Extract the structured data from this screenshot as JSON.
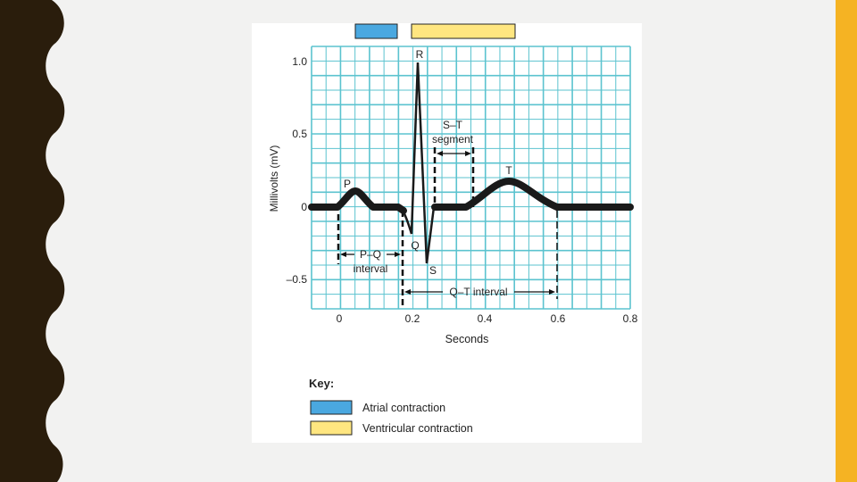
{
  "figure": {
    "y_axis_label": "Millivolts (mV)",
    "x_axis_label": "Seconds",
    "y_ticks": [
      "1.0",
      "0.5",
      "0",
      "–0.5"
    ],
    "x_ticks": [
      "0",
      "0.2",
      "0.4",
      "0.6",
      "0.8"
    ],
    "wave_labels": {
      "P": "P",
      "Q": "Q",
      "R": "R",
      "S": "S",
      "T": "T"
    },
    "intervals": {
      "st_line1": "S–T",
      "st_line2": "segment",
      "pq_line1": "P–Q",
      "pq_line2": "interval",
      "qt": "Q–T interval"
    },
    "key": {
      "title": "Key:",
      "items": [
        {
          "label": "Atrial contraction",
          "color": "#4aa8e0"
        },
        {
          "label": "Ventricular contraction",
          "color": "#ffe680"
        }
      ]
    }
  },
  "colors": {
    "grid": "#5bc3cf",
    "trace": "#1a1a1a",
    "accent_bar": "#f5b323",
    "border": "#2a1d0c"
  }
}
